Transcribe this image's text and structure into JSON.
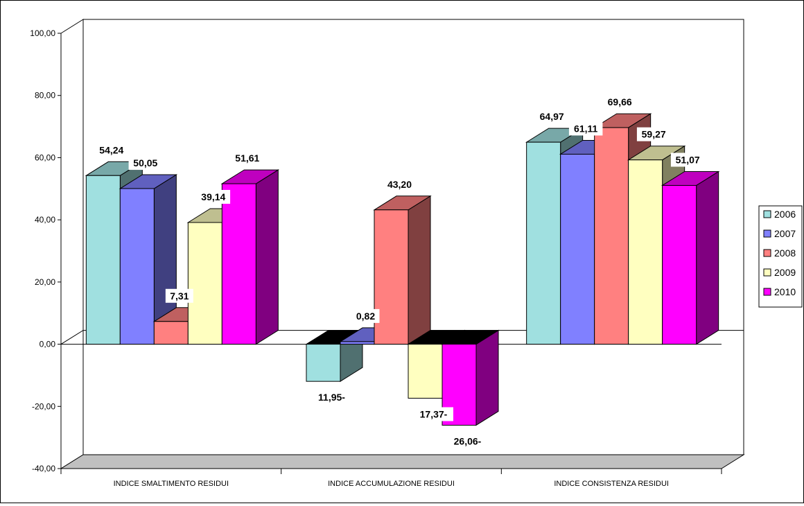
{
  "chart_data": {
    "type": "bar",
    "title": "",
    "xlabel": "",
    "ylabel": "",
    "ylim": [
      -40,
      100
    ],
    "yticks": [
      "100,00",
      "80,00",
      "60,00",
      "40,00",
      "20,00",
      "0,00",
      "-20,00",
      "-40,00"
    ],
    "categories": [
      "INDICE SMALTIMENTO RESIDUI",
      "INDICE ACCUMULAZIONE RESIDUI",
      "INDICE CONSISTENZA RESIDUI"
    ],
    "series": [
      {
        "name": "2006",
        "values": [
          54.24,
          -11.95,
          64.97
        ],
        "labels": [
          "54,24",
          "11,95-",
          "64,97"
        ],
        "color": "#a0e0e0"
      },
      {
        "name": "2007",
        "values": [
          50.05,
          0.82,
          61.11
        ],
        "labels": [
          "50,05",
          "0,82",
          "61,11"
        ],
        "color": "#8080ff"
      },
      {
        "name": "2008",
        "values": [
          7.31,
          43.2,
          69.66
        ],
        "labels": [
          "7,31",
          "43,20",
          "69,66"
        ],
        "color": "#ff8080"
      },
      {
        "name": "2009",
        "values": [
          39.14,
          -17.37,
          59.27
        ],
        "labels": [
          "39,14",
          "17,37-",
          "59,27"
        ],
        "color": "#ffffc0"
      },
      {
        "name": "2010",
        "values": [
          51.61,
          -26.06,
          51.07
        ],
        "labels": [
          "51,61",
          "26,06-",
          "51,07"
        ],
        "color": "#ff00ff"
      }
    ],
    "legend_position": "right",
    "grid": false,
    "style": "3d-clustered-column"
  }
}
